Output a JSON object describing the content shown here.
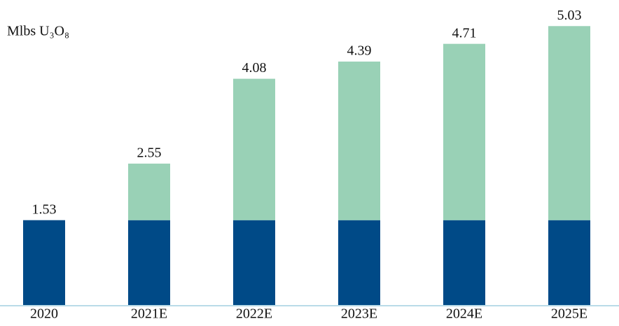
{
  "chart_data": {
    "type": "bar",
    "y_label": "Mlbs U₃O₈",
    "categories": [
      "2020",
      "2021E",
      "2022E",
      "2023E",
      "2024E",
      "2025E"
    ],
    "series": [
      {
        "color": "#004a87",
        "values": [
          1.53,
          1.53,
          1.53,
          1.53,
          1.53,
          1.53
        ]
      },
      {
        "color": "#99d1b6",
        "values": [
          null,
          1.02,
          2.55,
          2.86,
          3.18,
          3.5
        ]
      }
    ],
    "totals": [
      1.53,
      2.55,
      4.08,
      4.39,
      4.71,
      5.03
    ],
    "ylim": [
      0,
      5.45
    ],
    "stacked": true
  }
}
